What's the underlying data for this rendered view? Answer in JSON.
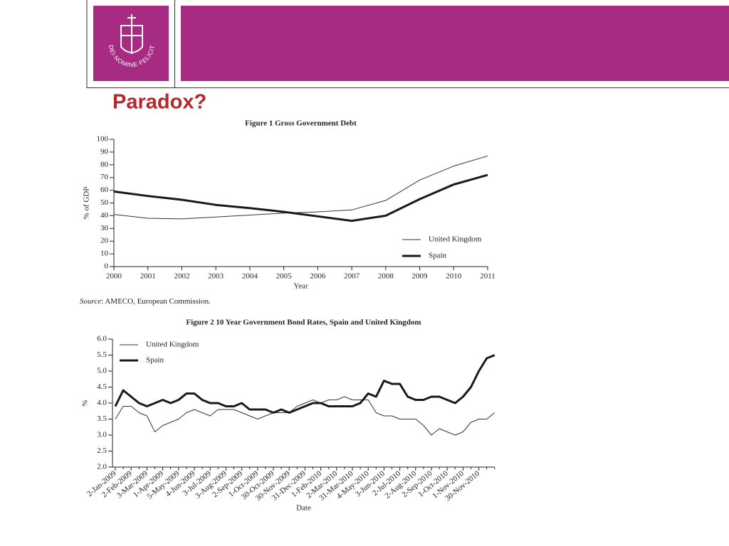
{
  "slide_title": "Paradox?",
  "logo_motto": "IN·DEI·NOMINE·FELICITER",
  "source_label": "Source",
  "source_text": ": AMECO, European Commission.",
  "chart_data": [
    {
      "type": "line",
      "title": "Figure 1  Gross Government Debt",
      "xlabel": "Year",
      "ylabel": "% of GDP",
      "x": [
        2000,
        2001,
        2002,
        2003,
        2004,
        2005,
        2006,
        2007,
        2008,
        2009,
        2010,
        2011
      ],
      "xlim": [
        2000,
        2011
      ],
      "xticks": [
        2000,
        2001,
        2002,
        2003,
        2004,
        2005,
        2006,
        2007,
        2008,
        2009,
        2010,
        2011
      ],
      "ylim": [
        0,
        100
      ],
      "yticks": [
        0,
        10,
        20,
        30,
        40,
        50,
        60,
        70,
        80,
        90,
        100
      ],
      "legend": "lower right",
      "series": [
        {
          "name": "United Kingdom",
          "color": "#333333",
          "width": 1,
          "values": [
            41,
            38,
            37.5,
            39,
            40.5,
            42,
            43,
            44.5,
            52,
            68,
            79,
            87
          ]
        },
        {
          "name": "Spain",
          "color": "#1a1a1a",
          "width": 3,
          "values": [
            59,
            55.5,
            52.5,
            48.5,
            46,
            43,
            39.5,
            36,
            40,
            53,
            64.5,
            72
          ]
        }
      ]
    },
    {
      "type": "line",
      "title": "Figure 2  10 Year Government Bond Rates, Spain and United Kingdom",
      "xlabel": "Date",
      "ylabel": "%",
      "categories": [
        "2-Jan-2009",
        null,
        "2-Feb-2009",
        null,
        "3-Mar-2009",
        null,
        "1-Apr-2009",
        null,
        "5-May-2009",
        null,
        "4-Jun-2009",
        null,
        "3-Jul-2009",
        null,
        "3-Aug-2009",
        null,
        "2-Sep-2009",
        null,
        "1-Oct-2009",
        null,
        "30-Oct-2009",
        null,
        "30-Nov-2009",
        null,
        "31-Dec-2009",
        null,
        "1-Feb-2010",
        null,
        "2-Mar-2010",
        null,
        "31-Mar-2010",
        null,
        "4-May-2010",
        null,
        "3-Jun-2010",
        null,
        "2-Jul-2010",
        null,
        "2-Aug-2010",
        null,
        "2-Sep-2010",
        null,
        "1-Oct-2010",
        null,
        "1-Nov-2010",
        null,
        "30-Nov-2010",
        null,
        null
      ],
      "ylim": [
        2,
        6
      ],
      "yticks": [
        {
          "value": 2,
          "label": "2.0"
        },
        2.5,
        {
          "value": 3,
          "label": "3.0"
        },
        3.5,
        {
          "value": 4,
          "label": "4.0"
        },
        4.5,
        {
          "value": 5,
          "label": "5.0"
        },
        5.5,
        {
          "value": 6,
          "label": "6.0"
        }
      ],
      "legend": "upper left",
      "series": [
        {
          "name": "United Kingdom",
          "color": "#333333",
          "width": 1,
          "values": [
            3.5,
            3.9,
            3.9,
            3.7,
            3.6,
            3.1,
            3.3,
            3.4,
            3.5,
            3.7,
            3.8,
            3.7,
            3.6,
            3.8,
            3.8,
            3.8,
            3.7,
            3.6,
            3.5,
            3.6,
            3.7,
            3.7,
            3.7,
            3.9,
            4.0,
            4.1,
            4.0,
            4.1,
            4.1,
            4.2,
            4.1,
            4.1,
            4.1,
            3.7,
            3.6,
            3.6,
            3.5,
            3.5,
            3.5,
            3.3,
            3.0,
            3.2,
            3.1,
            3.0,
            3.1,
            3.4,
            3.5,
            3.5,
            3.7
          ]
        },
        {
          "name": "Spain",
          "color": "#1a1a1a",
          "width": 3,
          "values": [
            3.9,
            4.4,
            4.2,
            4.0,
            3.9,
            4.0,
            4.1,
            4.0,
            4.1,
            4.3,
            4.3,
            4.1,
            4.0,
            4.0,
            3.9,
            3.9,
            4.0,
            3.8,
            3.8,
            3.8,
            3.7,
            3.8,
            3.7,
            3.8,
            3.9,
            4.0,
            4.0,
            3.9,
            3.9,
            3.9,
            3.9,
            4.0,
            4.3,
            4.2,
            4.7,
            4.6,
            4.6,
            4.2,
            4.1,
            4.1,
            4.2,
            4.2,
            4.1,
            4.0,
            4.2,
            4.5,
            5.0,
            5.4,
            5.5
          ]
        }
      ]
    }
  ]
}
